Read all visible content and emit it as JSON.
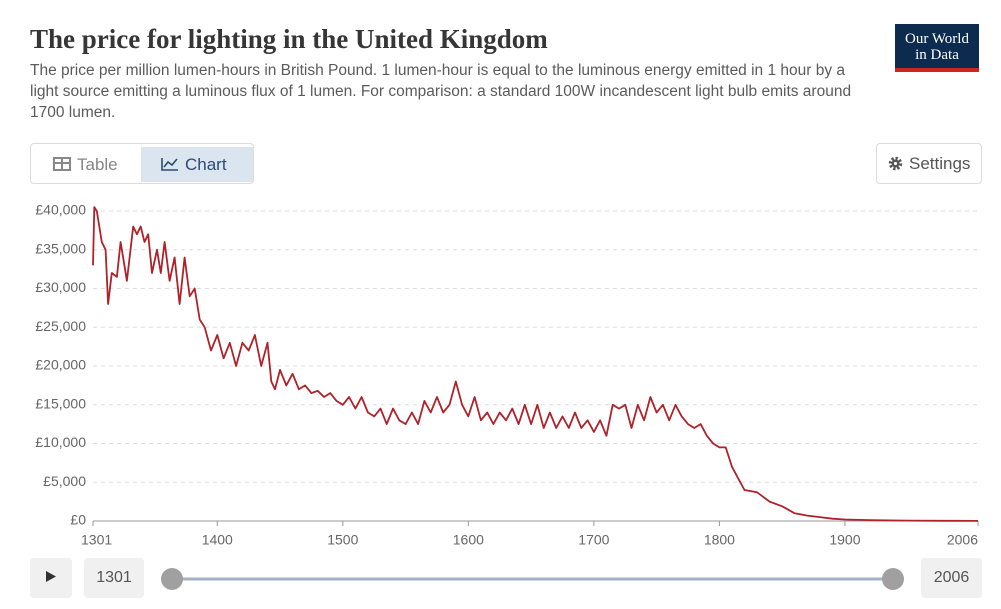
{
  "header": {
    "logo": [
      "Our World",
      "in Data"
    ],
    "tabs": [
      "Table",
      "Chart"
    ],
    "settings": "Settings"
  },
  "timeline": {
    "start": 1301,
    "end": 2006
  },
  "chart_data": {
    "type": "line",
    "title": "The price for lighting in the United Kingdom",
    "subtitle": "The price per million lumen-hours in British Pound. 1 lumen-hour is equal to the luminous energy emitted in 1 hour by a light source emitting a luminous flux of 1 lumen. For comparison: a standard 100W incandescent light bulb emits around 1700 lumen.",
    "color": "#b0222a",
    "grid": true,
    "x": [
      1301,
      1302,
      1304,
      1308,
      1311,
      1313,
      1316,
      1320,
      1323,
      1326,
      1328,
      1333,
      1336,
      1339,
      1342,
      1345,
      1348,
      1352,
      1355,
      1358,
      1362,
      1366,
      1370,
      1374,
      1378,
      1382,
      1386,
      1390,
      1395,
      1400,
      1405,
      1410,
      1415,
      1420,
      1425,
      1430,
      1435,
      1440,
      1443,
      1446,
      1450,
      1455,
      1460,
      1465,
      1470,
      1475,
      1480,
      1485,
      1490,
      1495,
      1500,
      1505,
      1510,
      1515,
      1520,
      1525,
      1530,
      1535,
      1540,
      1545,
      1550,
      1555,
      1560,
      1565,
      1570,
      1575,
      1580,
      1585,
      1590,
      1595,
      1600,
      1605,
      1610,
      1615,
      1620,
      1625,
      1630,
      1635,
      1640,
      1645,
      1650,
      1655,
      1660,
      1665,
      1670,
      1675,
      1680,
      1685,
      1690,
      1695,
      1700,
      1705,
      1710,
      1715,
      1720,
      1725,
      1730,
      1735,
      1740,
      1745,
      1750,
      1755,
      1760,
      1765,
      1770,
      1775,
      1780,
      1785,
      1790,
      1795,
      1800,
      1805,
      1810,
      1815,
      1820,
      1830,
      1840,
      1850,
      1860,
      1870,
      1880,
      1890,
      1900,
      1920,
      1950,
      1980,
      2006
    ],
    "values": [
      33000,
      40500,
      40000,
      36000,
      35000,
      28000,
      32000,
      31500,
      36000,
      33000,
      31000,
      38000,
      37000,
      38000,
      36000,
      37000,
      32000,
      35000,
      32000,
      36000,
      31000,
      34000,
      28000,
      34000,
      29000,
      30000,
      26000,
      25000,
      22000,
      24000,
      21000,
      23000,
      20000,
      23000,
      22000,
      24000,
      20000,
      23000,
      18000,
      17000,
      19500,
      17500,
      19000,
      17000,
      17500,
      16500,
      16800,
      16000,
      16500,
      15500,
      15000,
      16000,
      14500,
      16000,
      14000,
      13500,
      14500,
      12500,
      14500,
      13000,
      12500,
      14000,
      12500,
      15500,
      14000,
      16000,
      14000,
      15000,
      18000,
      15000,
      13500,
      16000,
      13000,
      14000,
      12500,
      14000,
      13000,
      14500,
      12500,
      15000,
      12500,
      15000,
      12000,
      14000,
      12000,
      13500,
      12000,
      14000,
      12000,
      13000,
      11500,
      13000,
      11000,
      15000,
      14500,
      15000,
      12000,
      15000,
      13000,
      16000,
      14000,
      15000,
      13000,
      15000,
      13500,
      12500,
      12000,
      12500,
      11000,
      10000,
      9500,
      9500,
      7000,
      5500,
      4000,
      3700,
      2500,
      1900,
      1000,
      700,
      500,
      300,
      200,
      120,
      50,
      20,
      10
    ],
    "xlim": [
      1301,
      2006
    ],
    "xticks": [
      1301,
      1400,
      1500,
      1600,
      1700,
      1800,
      1900,
      2006
    ],
    "ylim": [
      0,
      40000
    ],
    "yticks": [
      {
        "value": 0,
        "label": "£0"
      },
      {
        "value": 5000,
        "label": "£5,000"
      },
      {
        "value": 10000,
        "label": "£10,000"
      },
      {
        "value": 15000,
        "label": "£15,000"
      },
      {
        "value": 20000,
        "label": "£20,000"
      },
      {
        "value": 25000,
        "label": "£25,000"
      },
      {
        "value": 30000,
        "label": "£30,000"
      },
      {
        "value": 35000,
        "label": "£35,000"
      },
      {
        "value": 40000,
        "label": "£40,000"
      }
    ]
  }
}
